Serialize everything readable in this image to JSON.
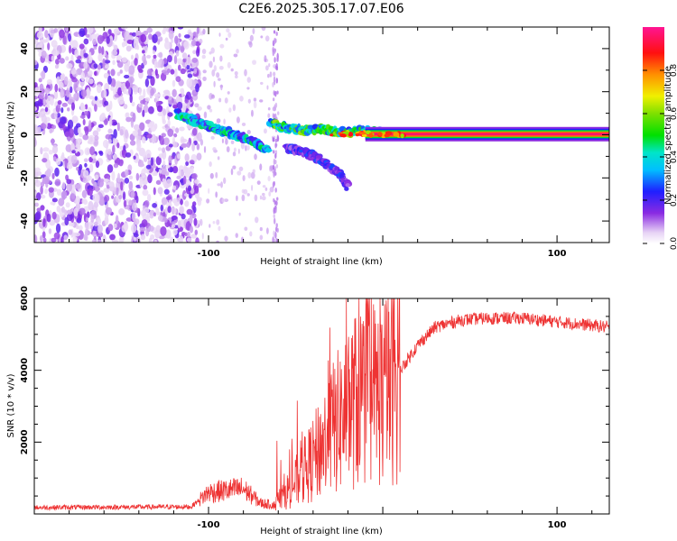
{
  "figure_title": "C2E6.2025.305.17.07.E06",
  "chart_data": [
    {
      "type": "heatmap",
      "title": "C2E6.2025.305.17.07.E06",
      "xlabel": "Height of straight line (km)",
      "ylabel": "Frequency (Hz)",
      "xlim": [
        -200,
        130
      ],
      "ylim": [
        -50,
        50
      ],
      "x_ticks": [
        -100,
        0,
        100
      ],
      "x_tick_labels": [
        "-100",
        "",
        "100"
      ],
      "y_ticks": [
        -40,
        -20,
        0,
        20,
        40
      ],
      "y_tick_labels": [
        "-40",
        "-20",
        "0",
        "20",
        "40"
      ],
      "colorbar": {
        "label": "Normalized spectral amplitude",
        "range": [
          0,
          1
        ],
        "ticks": [
          0.0,
          0.2,
          0.4,
          0.6,
          0.8
        ],
        "tick_labels": [
          "0.0",
          "0.2",
          "0.4",
          "0.6",
          "0.8"
        ],
        "colormap": "rainbow (white-purple-blue-cyan-green-yellow-orange-red-pink)"
      },
      "noise_region_x": [
        -200,
        -105
      ],
      "sparse_noise_x": [
        -105,
        -62
      ],
      "ridges": [
        {
          "name": "doppler-main",
          "points": [
            [
              -118,
              10
            ],
            [
              -108,
              6
            ],
            [
              -95,
              3
            ],
            [
              -85,
              0
            ],
            [
              -75,
              -3
            ],
            [
              -65,
              -8
            ]
          ],
          "amplitude": 0.35
        },
        {
          "name": "doppler-branch",
          "points": [
            [
              -65,
              6
            ],
            [
              -55,
              3
            ],
            [
              -45,
              2
            ],
            [
              -35,
              3
            ],
            [
              -25,
              1
            ],
            [
              -15,
              2
            ],
            [
              0,
              1
            ],
            [
              10,
              0
            ]
          ],
          "amplitude": 0.45
        },
        {
          "name": "doppler-tail",
          "points": [
            [
              -55,
              -6
            ],
            [
              -45,
              -8
            ],
            [
              -35,
              -12
            ],
            [
              -25,
              -18
            ],
            [
              -20,
              -24
            ]
          ],
          "amplitude": 0.2
        },
        {
          "name": "carrier-line",
          "points": [
            [
              -10,
              0.3
            ],
            [
              130,
              0.3
            ]
          ],
          "amplitude": 0.97
        }
      ]
    },
    {
      "type": "line",
      "xlabel": "Height of straight line (km)",
      "ylabel": "SNR (10 * v/v)",
      "xlim": [
        -200,
        130
      ],
      "ylim": [
        0,
        6000
      ],
      "x_ticks": [
        -100,
        0,
        100
      ],
      "x_tick_labels": [
        "-100",
        "",
        "100"
      ],
      "y_ticks": [
        2000,
        4000,
        6000
      ],
      "y_tick_labels": [
        "2000",
        "4000",
        "6000"
      ],
      "color": "#ee3333",
      "envelope": [
        {
          "x": -200,
          "y": 180
        },
        {
          "x": -110,
          "y": 200
        },
        {
          "x": -100,
          "y": 600
        },
        {
          "x": -80,
          "y": 700
        },
        {
          "x": -70,
          "y": 300
        },
        {
          "x": -62,
          "y": 250
        },
        {
          "x": -50,
          "y": 900
        },
        {
          "x": -40,
          "y": 1500
        },
        {
          "x": -30,
          "y": 2300
        },
        {
          "x": -20,
          "y": 2900
        },
        {
          "x": -10,
          "y": 3500
        },
        {
          "x": 0,
          "y": 3300
        },
        {
          "x": 10,
          "y": 4000
        },
        {
          "x": 20,
          "y": 4700
        },
        {
          "x": 30,
          "y": 5200
        },
        {
          "x": 45,
          "y": 5400
        },
        {
          "x": 60,
          "y": 5450
        },
        {
          "x": 80,
          "y": 5450
        },
        {
          "x": 100,
          "y": 5350
        },
        {
          "x": 130,
          "y": 5200
        }
      ]
    }
  ]
}
